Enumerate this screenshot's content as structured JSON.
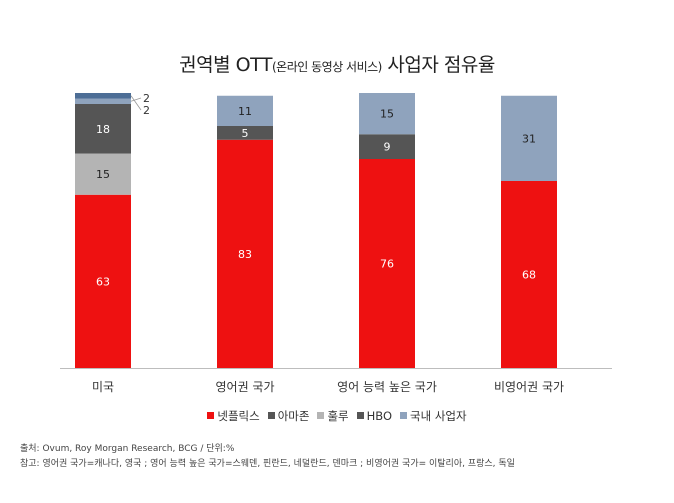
{
  "title": {
    "main_a": "권역별 OTT",
    "main_sub": "(온라인 동영상 서비스)",
    "main_b": " 사업자 점유율"
  },
  "chart_data": {
    "type": "bar",
    "stacked": true,
    "categories": [
      "미국",
      "영어권 국가",
      "영어 능력 높은 국가",
      "비영어권 국가"
    ],
    "series": [
      {
        "name": "넷플릭스",
        "color": "#ee1111",
        "values": [
          63,
          83,
          76,
          68
        ]
      },
      {
        "name": "아마존",
        "color": "#555555",
        "values": [
          0,
          0,
          0,
          0
        ]
      },
      {
        "name": "훌루",
        "color": "#b4b4b4",
        "values": [
          15,
          0,
          0,
          0
        ]
      },
      {
        "name": "HBO",
        "color": "#555555",
        "values": [
          18,
          5,
          9,
          0
        ]
      },
      {
        "name": "국내 사업자",
        "color": "#8fa3bd",
        "values": [
          2,
          11,
          15,
          31
        ]
      },
      {
        "name": "",
        "color": "#4d6e96",
        "values": [
          2,
          0,
          0,
          0
        ]
      }
    ],
    "data_labels": [
      [
        "63",
        "",
        "15",
        "18",
        "2",
        "2"
      ],
      [
        "83",
        "",
        "",
        "5",
        "11",
        ""
      ],
      [
        "76",
        "",
        "",
        "9",
        "15",
        ""
      ],
      [
        "68",
        "",
        "",
        "",
        "31",
        ""
      ]
    ],
    "ylim": [
      0,
      100
    ],
    "grid": false,
    "legend_position": "bottom"
  },
  "notes": {
    "source": "출처: Ovum, Roy Morgan Research, BCG  /  단위:%",
    "reference": "참고: 영어권 국가=캐나다, 영국 ; 영어 능력 높은 국가=스웨덴, 핀란드, 네덜란드, 덴마크 ; 비영어권 국가= 이탈리아, 프랑스, 독일"
  }
}
